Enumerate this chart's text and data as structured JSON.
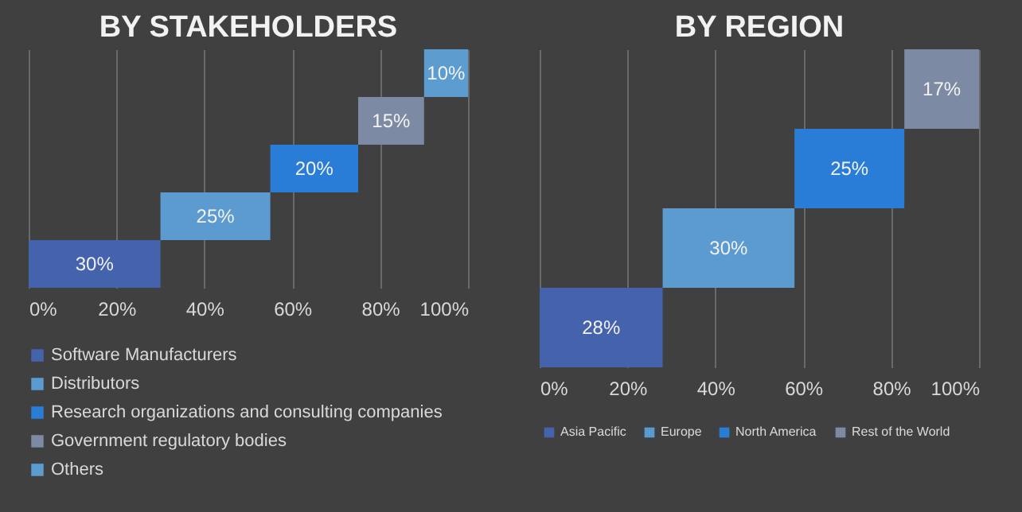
{
  "chart_data": [
    {
      "type": "bar",
      "orientation": "horizontal",
      "title": "BY STAKEHOLDERS",
      "categories": [
        null,
        null,
        null,
        null,
        null
      ],
      "xlim": [
        0,
        100
      ],
      "xticks": [
        {
          "value": 0,
          "label": "0%"
        },
        {
          "value": 20,
          "label": "20%"
        },
        {
          "value": 40,
          "label": "40%"
        },
        {
          "value": 60,
          "label": "60%"
        },
        {
          "value": 80,
          "label": "80%"
        },
        {
          "value": 100,
          "label": "100%"
        }
      ],
      "grid": "x",
      "legend": "bottom",
      "tick_labels": "x",
      "series": [
        {
          "name": "Software Manufacturers",
          "color": "#4563ad",
          "values": [
            null,
            null,
            null,
            null,
            30
          ],
          "base": [
            null,
            null,
            null,
            null,
            0
          ],
          "value_labels": [
            null,
            null,
            null,
            null,
            "30%"
          ]
        },
        {
          "name": "Distributors",
          "color": "#5b9bd0",
          "values": [
            null,
            null,
            null,
            25,
            null
          ],
          "base": [
            null,
            null,
            null,
            30,
            null
          ],
          "value_labels": [
            null,
            null,
            null,
            "25%",
            null
          ]
        },
        {
          "name": "Research organizations and consulting companies",
          "color": "#2a7dd6",
          "values": [
            null,
            null,
            20,
            null,
            null
          ],
          "base": [
            null,
            null,
            55,
            null,
            null
          ],
          "value_labels": [
            null,
            null,
            "20%",
            null,
            null
          ]
        },
        {
          "name": "Government regulatory bodies",
          "color": "#7d8aa4",
          "values": [
            null,
            15,
            null,
            null,
            null
          ],
          "base": [
            null,
            75,
            null,
            null,
            null
          ],
          "value_labels": [
            null,
            "15%",
            null,
            null,
            null
          ]
        },
        {
          "name": "Others",
          "color": "#5c9ccf",
          "values": [
            10,
            null,
            null,
            null,
            null
          ],
          "base": [
            90,
            null,
            null,
            null,
            null
          ],
          "value_labels": [
            "10%",
            null,
            null,
            null,
            null
          ]
        }
      ]
    },
    {
      "type": "bar",
      "orientation": "horizontal",
      "title": "BY REGION",
      "categories": [
        null,
        null,
        null,
        null
      ],
      "xlim": [
        0,
        100
      ],
      "xticks": [
        {
          "value": 0,
          "label": "0%"
        },
        {
          "value": 20,
          "label": "20%"
        },
        {
          "value": 40,
          "label": "40%"
        },
        {
          "value": 60,
          "label": "60%"
        },
        {
          "value": 80,
          "label": "80%"
        },
        {
          "value": 100,
          "label": "100%"
        }
      ],
      "grid": "x",
      "legend": "bottom",
      "tick_labels": "x",
      "series": [
        {
          "name": "Asia Pacific",
          "color": "#4563ad",
          "values": [
            null,
            null,
            null,
            28
          ],
          "base": [
            null,
            null,
            null,
            0
          ],
          "value_labels": [
            null,
            null,
            null,
            "28%"
          ]
        },
        {
          "name": "Europe",
          "color": "#5b9bd0",
          "values": [
            null,
            null,
            30,
            null
          ],
          "base": [
            null,
            null,
            28,
            null
          ],
          "value_labels": [
            null,
            null,
            "30%",
            null
          ]
        },
        {
          "name": "North America",
          "color": "#2a7dd6",
          "values": [
            null,
            25,
            null,
            null
          ],
          "base": [
            null,
            58,
            null,
            null
          ],
          "value_labels": [
            null,
            "25%",
            null,
            null
          ]
        },
        {
          "name": "Rest of the World",
          "color": "#7d8aa4",
          "values": [
            17,
            null,
            null,
            null
          ],
          "base": [
            83,
            null,
            null,
            null
          ],
          "value_labels": [
            "17%",
            null,
            null,
            null
          ]
        }
      ]
    }
  ]
}
